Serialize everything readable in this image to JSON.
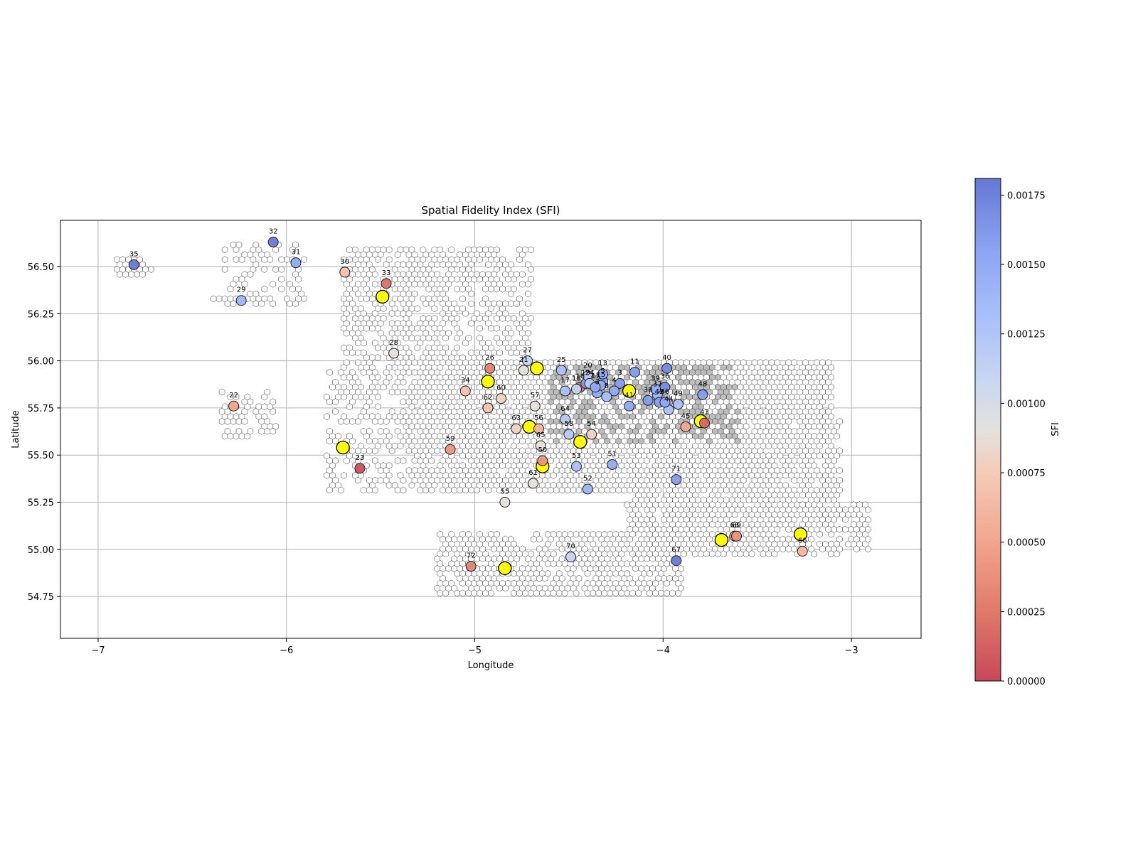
{
  "chart_data": {
    "type": "scatter",
    "title": "Spatial Fidelity Index (SFI)",
    "xlabel": "Longitude",
    "ylabel": "Latitude",
    "xlim": [
      -7.2,
      -2.63
    ],
    "ylim": [
      54.528,
      56.745
    ],
    "xticks": [
      -7,
      -6,
      -5,
      -4,
      -3
    ],
    "xtick_labels": [
      "−7",
      "−6",
      "−5",
      "−4",
      "−3"
    ],
    "yticks": [
      54.75,
      55.0,
      55.25,
      55.5,
      55.75,
      56.0,
      56.25,
      56.5
    ],
    "ytick_labels": [
      "54.75",
      "55.00",
      "55.25",
      "55.50",
      "55.75",
      "56.00",
      "56.25",
      "56.50"
    ],
    "grid": true,
    "colorbar": {
      "label": "SFI",
      "min": 0.0,
      "max": 0.00181,
      "colormap": "coolwarm_r",
      "ticks": [
        0.0,
        0.00025,
        0.0005,
        0.00075,
        0.001,
        0.00125,
        0.0015,
        0.00175
      ],
      "tick_labels": [
        "0.00000",
        "0.00025",
        "0.00050",
        "0.00075",
        "0.00100",
        "0.00125",
        "0.00150",
        "0.00175"
      ]
    },
    "highlight_color": "#ffff00",
    "highlighted_points": [
      [
        -5.49,
        56.34
      ],
      [
        -4.93,
        55.89
      ],
      [
        -4.67,
        55.96
      ],
      [
        -5.7,
        55.54
      ],
      [
        -4.71,
        55.65
      ],
      [
        -4.44,
        55.57
      ],
      [
        -4.64,
        55.44
      ],
      [
        -4.18,
        55.84
      ],
      [
        -3.8,
        55.68
      ],
      [
        -3.69,
        55.05
      ],
      [
        -3.27,
        55.08
      ],
      [
        -4.84,
        54.9
      ]
    ],
    "points": [
      {
        "id": "3",
        "lon": -4.23,
        "lat": 55.88,
        "sfi": 0.0016
      },
      {
        "id": "4",
        "lon": -4.26,
        "lat": 55.84,
        "sfi": 0.0015
      },
      {
        "id": "5",
        "lon": -4.32,
        "lat": 55.89,
        "sfi": 0.00155
      },
      {
        "id": "6",
        "lon": -4.35,
        "lat": 55.83,
        "sfi": 0.0015
      },
      {
        "id": "8",
        "lon": -4.3,
        "lat": 55.81,
        "sfi": 0.0013
      },
      {
        "id": "11",
        "lon": -4.15,
        "lat": 55.94,
        "sfi": 0.0016
      },
      {
        "id": "13",
        "lon": -4.32,
        "lat": 55.93,
        "sfi": 0.0015
      },
      {
        "id": "15",
        "lon": -4.33,
        "lat": 55.87,
        "sfi": 0.0015
      },
      {
        "id": "16",
        "lon": -4.44,
        "lat": 55.86,
        "sfi": 0.0002
      },
      {
        "id": "17",
        "lon": -4.52,
        "lat": 55.84,
        "sfi": 0.0013
      },
      {
        "id": "18",
        "lon": -4.46,
        "lat": 55.85,
        "sfi": 0.0011
      },
      {
        "id": "19",
        "lon": -4.41,
        "lat": 55.88,
        "sfi": 0.0016
      },
      {
        "id": "20",
        "lon": -4.4,
        "lat": 55.92,
        "sfi": 0.0012
      },
      {
        "id": "21",
        "lon": -4.74,
        "lat": 55.95,
        "sfi": 0.0009
      },
      {
        "id": "22",
        "lon": -6.28,
        "lat": 55.76,
        "sfi": 0.0005
      },
      {
        "id": "23",
        "lon": -5.61,
        "lat": 55.43,
        "sfi": 5e-05
      },
      {
        "id": "24",
        "lon": -4.39,
        "lat": 55.88,
        "sfi": 0.0012
      },
      {
        "id": "25",
        "lon": -4.54,
        "lat": 55.95,
        "sfi": 0.0013
      },
      {
        "id": "26",
        "lon": -4.92,
        "lat": 55.96,
        "sfi": 0.0003
      },
      {
        "id": "27",
        "lon": -4.72,
        "lat": 56.0,
        "sfi": 0.0011
      },
      {
        "id": "28",
        "lon": -5.43,
        "lat": 56.04,
        "sfi": 0.0009
      },
      {
        "id": "29",
        "lon": -6.24,
        "lat": 56.32,
        "sfi": 0.0014
      },
      {
        "id": "30",
        "lon": -5.69,
        "lat": 56.47,
        "sfi": 0.0007
      },
      {
        "id": "31",
        "lon": -5.95,
        "lat": 56.52,
        "sfi": 0.0015
      },
      {
        "id": "32",
        "lon": -6.07,
        "lat": 56.63,
        "sfi": 0.0018
      },
      {
        "id": "33",
        "lon": -5.47,
        "lat": 56.41,
        "sfi": 0.0002
      },
      {
        "id": "34",
        "lon": -5.05,
        "lat": 55.84,
        "sfi": 0.0007
      },
      {
        "id": "35",
        "lon": -6.81,
        "lat": 56.51,
        "sfi": 0.0018
      },
      {
        "id": "36",
        "lon": -3.99,
        "lat": 55.86,
        "sfi": 0.0017
      },
      {
        "id": "37",
        "lon": -4.03,
        "lat": 55.82,
        "sfi": 0.0014
      },
      {
        "id": "38",
        "lon": -4.08,
        "lat": 55.79,
        "sfi": 0.0016
      },
      {
        "id": "39",
        "lon": -4.04,
        "lat": 55.85,
        "sfi": 0.0015
      },
      {
        "id": "40",
        "lon": -3.98,
        "lat": 55.96,
        "sfi": 0.0017
      },
      {
        "id": "41",
        "lon": -4.18,
        "lat": 55.76,
        "sfi": 0.0015
      },
      {
        "id": "42",
        "lon": -4.02,
        "lat": 55.78,
        "sfi": 0.0016
      },
      {
        "id": "43",
        "lon": -3.78,
        "lat": 55.67,
        "sfi": 0.00015
      },
      {
        "id": "44",
        "lon": -3.97,
        "lat": 55.74,
        "sfi": 0.0013
      },
      {
        "id": "45",
        "lon": -3.88,
        "lat": 55.65,
        "sfi": 0.0005
      },
      {
        "id": "46",
        "lon": -3.99,
        "lat": 55.78,
        "sfi": 0.0015
      },
      {
        "id": "47",
        "lon": -4.36,
        "lat": 55.86,
        "sfi": 0.0015
      },
      {
        "id": "48",
        "lon": -3.79,
        "lat": 55.82,
        "sfi": 0.0016
      },
      {
        "id": "49",
        "lon": -3.92,
        "lat": 55.77,
        "sfi": 0.0013
      },
      {
        "id": "50",
        "lon": -4.64,
        "lat": 55.47,
        "sfi": 0.0004
      },
      {
        "id": "51",
        "lon": -4.27,
        "lat": 55.45,
        "sfi": 0.0015
      },
      {
        "id": "52",
        "lon": -4.4,
        "lat": 55.32,
        "sfi": 0.0014
      },
      {
        "id": "53",
        "lon": -4.46,
        "lat": 55.44,
        "sfi": 0.0013
      },
      {
        "id": "54",
        "lon": -4.38,
        "lat": 55.61,
        "sfi": 0.0008
      },
      {
        "id": "55",
        "lon": -4.84,
        "lat": 55.25,
        "sfi": 0.0009
      },
      {
        "id": "56",
        "lon": -4.66,
        "lat": 55.64,
        "sfi": 0.0006
      },
      {
        "id": "57",
        "lon": -4.68,
        "lat": 55.76,
        "sfi": 0.0009
      },
      {
        "id": "58",
        "lon": -4.5,
        "lat": 55.61,
        "sfi": 0.0012
      },
      {
        "id": "59",
        "lon": -5.13,
        "lat": 55.53,
        "sfi": 0.0004
      },
      {
        "id": "60",
        "lon": -4.86,
        "lat": 55.8,
        "sfi": 0.0008
      },
      {
        "id": "61",
        "lon": -4.69,
        "lat": 55.35,
        "sfi": 0.0009
      },
      {
        "id": "62",
        "lon": -4.93,
        "lat": 55.75,
        "sfi": 0.0007
      },
      {
        "id": "63",
        "lon": -4.78,
        "lat": 55.64,
        "sfi": 0.0008
      },
      {
        "id": "64",
        "lon": -4.52,
        "lat": 55.69,
        "sfi": 0.0012
      },
      {
        "id": "65",
        "lon": -4.65,
        "lat": 55.55,
        "sfi": 0.0009
      },
      {
        "id": "66",
        "lon": -3.26,
        "lat": 54.99,
        "sfi": 0.0006
      },
      {
        "id": "67",
        "lon": -3.93,
        "lat": 54.94,
        "sfi": 0.0018
      },
      {
        "id": "68",
        "lon": -3.62,
        "lat": 55.07,
        "sfi": 0.0004
      },
      {
        "id": "69",
        "lon": -3.61,
        "lat": 55.07,
        "sfi": 0.0004
      },
      {
        "id": "70",
        "lon": -4.49,
        "lat": 54.96,
        "sfi": 0.0011
      },
      {
        "id": "71",
        "lon": -3.93,
        "lat": 55.37,
        "sfi": 0.0016
      },
      {
        "id": "72",
        "lon": -5.02,
        "lat": 54.91,
        "sfi": 0.0003
      }
    ]
  }
}
